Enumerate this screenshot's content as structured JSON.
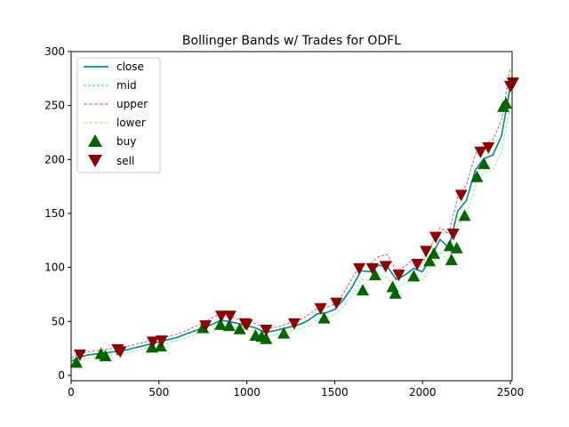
{
  "chart_data": {
    "type": "line",
    "title": "Bollinger Bands w/ Trades for ODFL",
    "xlabel": "",
    "ylabel": "",
    "xlim": [
      0,
      2510
    ],
    "ylim": [
      -5,
      300
    ],
    "xticks": [
      0,
      500,
      1000,
      1500,
      2000,
      2500
    ],
    "yticks": [
      0,
      50,
      100,
      150,
      200,
      250,
      300
    ],
    "grid": false,
    "legend_position": "top-left",
    "series": [
      {
        "name": "close",
        "color": "#008b8b",
        "style": "solid",
        "x": [
          0,
          50,
          100,
          150,
          200,
          250,
          300,
          350,
          400,
          450,
          500,
          550,
          600,
          650,
          700,
          750,
          800,
          850,
          900,
          950,
          1000,
          1050,
          1100,
          1150,
          1200,
          1250,
          1300,
          1350,
          1400,
          1450,
          1500,
          1550,
          1600,
          1650,
          1700,
          1750,
          1800,
          1850,
          1900,
          1950,
          2000,
          2050,
          2100,
          2150,
          2200,
          2250,
          2300,
          2350,
          2400,
          2450,
          2500
        ],
        "values": [
          13,
          17,
          19,
          20,
          21,
          22,
          23,
          25,
          27,
          29,
          31,
          33,
          35,
          38,
          41,
          44,
          47,
          51,
          50,
          48,
          46,
          44,
          40,
          41,
          43,
          45,
          47,
          51,
          57,
          58,
          61,
          70,
          82,
          97,
          96,
          102,
          101,
          89,
          93,
          99,
          96,
          110,
          126,
          118,
          152,
          162,
          190,
          201,
          204,
          222,
          268
        ]
      },
      {
        "name": "mid",
        "color": "#00ced1",
        "style": "dashed",
        "x": [
          0,
          50,
          100,
          150,
          200,
          250,
          300,
          350,
          400,
          450,
          500,
          550,
          600,
          650,
          700,
          750,
          800,
          850,
          900,
          950,
          1000,
          1050,
          1100,
          1150,
          1200,
          1250,
          1300,
          1350,
          1400,
          1450,
          1500,
          1550,
          1600,
          1650,
          1700,
          1750,
          1800,
          1850,
          1900,
          1950,
          2000,
          2050,
          2100,
          2150,
          2200,
          2250,
          2300,
          2350,
          2400,
          2450,
          2500
        ],
        "values": [
          13,
          17,
          19,
          20,
          21,
          22,
          23,
          25,
          27,
          29,
          31,
          33,
          35,
          38,
          41,
          44,
          47,
          51,
          50,
          48,
          46,
          44,
          40,
          41,
          43,
          45,
          47,
          51,
          57,
          58,
          61,
          70,
          82,
          97,
          96,
          102,
          101,
          89,
          93,
          99,
          96,
          110,
          126,
          118,
          152,
          162,
          190,
          201,
          204,
          222,
          268
        ]
      },
      {
        "name": "upper",
        "color": "#cd5c5c",
        "style": "dashed",
        "x": [
          0,
          50,
          100,
          150,
          200,
          250,
          300,
          350,
          400,
          450,
          500,
          550,
          600,
          650,
          700,
          750,
          800,
          850,
          900,
          950,
          1000,
          1050,
          1100,
          1150,
          1200,
          1250,
          1300,
          1350,
          1400,
          1450,
          1500,
          1550,
          1600,
          1650,
          1700,
          1750,
          1800,
          1850,
          1900,
          1950,
          2000,
          2050,
          2100,
          2150,
          2200,
          2250,
          2300,
          2350,
          2400,
          2450,
          2500
        ],
        "values": [
          16,
          20,
          22,
          23,
          24,
          25,
          26,
          28,
          30,
          32,
          34,
          36,
          38,
          41,
          45,
          48,
          53,
          57,
          55,
          52,
          50,
          48,
          44,
          44,
          46,
          49,
          51,
          56,
          62,
          63,
          66,
          76,
          90,
          104,
          103,
          110,
          112,
          97,
          101,
          108,
          104,
          120,
          137,
          131,
          165,
          176,
          205,
          214,
          218,
          237,
          285
        ]
      },
      {
        "name": "lower",
        "color": "#90ee90",
        "style": "dashed",
        "x": [
          0,
          50,
          100,
          150,
          200,
          250,
          300,
          350,
          400,
          450,
          500,
          550,
          600,
          650,
          700,
          750,
          800,
          850,
          900,
          950,
          1000,
          1050,
          1100,
          1150,
          1200,
          1250,
          1300,
          1350,
          1400,
          1450,
          1500,
          1550,
          1600,
          1650,
          1700,
          1750,
          1800,
          1850,
          1900,
          1950,
          2000,
          2050,
          2100,
          2150,
          2200,
          2250,
          2300,
          2350,
          2400,
          2450,
          2500
        ],
        "values": [
          10,
          14,
          16,
          17,
          18,
          19,
          20,
          22,
          24,
          26,
          28,
          30,
          32,
          35,
          37,
          40,
          42,
          46,
          45,
          44,
          42,
          40,
          36,
          37,
          40,
          41,
          43,
          46,
          52,
          53,
          56,
          64,
          74,
          89,
          88,
          94,
          90,
          81,
          85,
          90,
          88,
          100,
          115,
          105,
          139,
          148,
          175,
          188,
          190,
          207,
          250
        ]
      }
    ],
    "buy": {
      "name": "buy",
      "color": "#006400",
      "x": [
        30,
        170,
        195,
        460,
        510,
        750,
        850,
        900,
        960,
        1050,
        1085,
        1110,
        1210,
        1440,
        1660,
        1730,
        1830,
        1845,
        1950,
        2040,
        2065,
        2155,
        2165,
        2195,
        2240,
        2310,
        2350,
        2460,
        2475
      ],
      "values": [
        12,
        20,
        18,
        26,
        27,
        44,
        47,
        46,
        43,
        37,
        36,
        34,
        39,
        53,
        79,
        93,
        82,
        76,
        92,
        106,
        113,
        120,
        107,
        118,
        148,
        184,
        196,
        249,
        252
      ]
    },
    "sell": {
      "name": "sell",
      "color": "#8b0000",
      "x": [
        50,
        265,
        280,
        465,
        515,
        765,
        855,
        905,
        990,
        1000,
        1110,
        1270,
        1420,
        1510,
        1640,
        1715,
        1790,
        1865,
        1970,
        2020,
        2075,
        2175,
        2220,
        2330,
        2375,
        2500,
        2515
      ],
      "values": [
        19,
        24,
        22,
        31,
        32,
        46,
        55,
        55,
        48,
        47,
        42,
        48,
        62,
        67,
        99,
        99,
        101,
        93,
        103,
        115,
        128,
        131,
        167,
        207,
        211,
        268,
        271
      ]
    }
  }
}
